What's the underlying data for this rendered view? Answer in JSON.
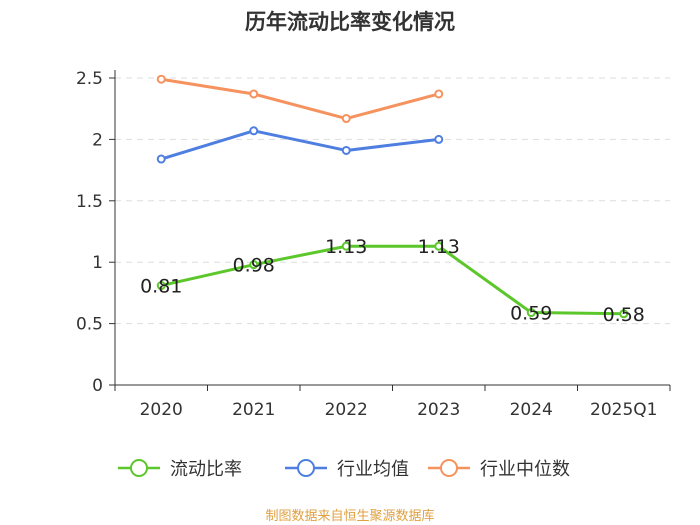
{
  "chart_data": {
    "type": "line",
    "title": "历年流动比率变化情况",
    "categories": [
      "2020",
      "2021",
      "2022",
      "2023",
      "2024",
      "2025Q1"
    ],
    "ylim": [
      0,
      2.5
    ],
    "yticks": [
      "0",
      "0.5",
      "1",
      "1.5",
      "2",
      "2.5"
    ],
    "grid": true,
    "legend_position": "bottom",
    "series": [
      {
        "name": "流动比率",
        "color": "#5cc72b",
        "values": [
          0.81,
          0.98,
          1.13,
          1.13,
          0.59,
          0.58
        ],
        "labels": [
          "0.81",
          "0.98",
          "1.13",
          "1.13",
          "0.59",
          "0.58"
        ]
      },
      {
        "name": "行业均值",
        "color": "#4e7fe0",
        "values": [
          1.84,
          2.07,
          1.91,
          2.0,
          null,
          null
        ]
      },
      {
        "name": "行业中位数",
        "color": "#f5925e",
        "values": [
          2.49,
          2.37,
          2.17,
          2.37,
          null,
          null
        ]
      }
    ]
  },
  "footer": {
    "source": "制图数据来自恒生聚源数据库"
  }
}
